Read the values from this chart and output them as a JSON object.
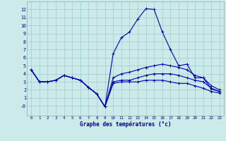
{
  "xlabel": "Graphe des températures (°c)",
  "bg_color": "#cceaea",
  "grid_color": "#99cccc",
  "line_color": "#0000bb",
  "xlim": [
    -0.5,
    23.5
  ],
  "ylim": [
    -1.2,
    13.0
  ],
  "yticks": [
    0,
    1,
    2,
    3,
    4,
    5,
    6,
    7,
    8,
    9,
    10,
    11,
    12
  ],
  "ytick_labels": [
    "-0",
    "1",
    "2",
    "3",
    "4",
    "5",
    "6",
    "7",
    "8",
    "9",
    "10",
    "11",
    "12"
  ],
  "xticks": [
    0,
    1,
    2,
    3,
    4,
    5,
    6,
    7,
    8,
    9,
    10,
    11,
    12,
    13,
    14,
    15,
    16,
    17,
    18,
    19,
    20,
    21,
    22,
    23
  ],
  "lines": [
    [
      4.5,
      3.0,
      3.0,
      3.2,
      3.8,
      3.5,
      3.2,
      2.3,
      1.5,
      -0.1,
      6.5,
      8.5,
      9.2,
      10.8,
      12.1,
      12.0,
      9.2,
      7.0,
      5.0,
      5.2,
      3.5,
      3.5,
      2.1,
      1.8
    ],
    [
      4.5,
      3.0,
      3.0,
      3.2,
      3.8,
      3.5,
      3.2,
      2.3,
      1.5,
      -0.1,
      3.5,
      4.0,
      4.2,
      4.5,
      4.8,
      5.0,
      5.2,
      5.0,
      4.8,
      4.5,
      3.8,
      3.5,
      2.5,
      2.0
    ],
    [
      4.5,
      3.0,
      3.0,
      3.2,
      3.8,
      3.5,
      3.2,
      2.3,
      1.5,
      -0.1,
      3.0,
      3.2,
      3.2,
      3.5,
      3.8,
      4.0,
      4.0,
      4.0,
      3.8,
      3.5,
      3.2,
      3.0,
      2.2,
      1.8
    ],
    [
      4.5,
      3.0,
      3.0,
      3.2,
      3.8,
      3.5,
      3.2,
      2.3,
      1.5,
      -0.1,
      2.8,
      3.0,
      3.0,
      3.0,
      3.2,
      3.2,
      3.2,
      3.0,
      2.8,
      2.8,
      2.5,
      2.2,
      1.8,
      1.6
    ]
  ]
}
